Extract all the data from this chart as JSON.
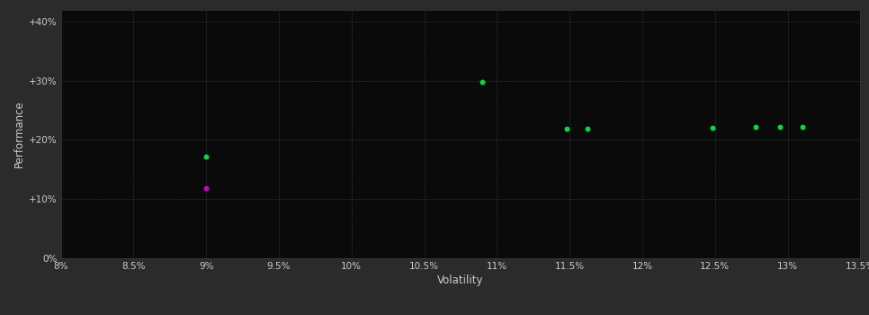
{
  "background_color": "#2b2b2b",
  "plot_bg_color": "#0a0a0a",
  "grid_color": "#3a3a3a",
  "text_color": "#cccccc",
  "xlabel": "Volatility",
  "ylabel": "Performance",
  "xlim": [
    0.08,
    0.135
  ],
  "ylim": [
    0.0,
    0.42
  ],
  "xticks": [
    0.08,
    0.085,
    0.09,
    0.095,
    0.1,
    0.105,
    0.11,
    0.115,
    0.12,
    0.125,
    0.13,
    0.135
  ],
  "xtick_labels": [
    "8%",
    "8.5%",
    "9%",
    "9.5%",
    "10%",
    "10.5%",
    "11%",
    "11.5%",
    "12%",
    "12.5%",
    "13%",
    "13.5%"
  ],
  "yticks": [
    0.0,
    0.1,
    0.2,
    0.3,
    0.4
  ],
  "ytick_labels": [
    "0%",
    "+10%",
    "+20%",
    "+30%",
    "+40%"
  ],
  "green_points": [
    [
      0.09,
      0.172
    ],
    [
      0.109,
      0.298
    ],
    [
      0.1148,
      0.218
    ],
    [
      0.1162,
      0.218
    ],
    [
      0.1248,
      0.22
    ],
    [
      0.1278,
      0.222
    ],
    [
      0.1295,
      0.222
    ],
    [
      0.131,
      0.222
    ]
  ],
  "magenta_points": [
    [
      0.09,
      0.118
    ]
  ],
  "green_color": "#00dd44",
  "magenta_color": "#cc00cc",
  "point_size": 18,
  "grid_alpha": 1.0,
  "grid_linestyle": "--",
  "grid_linewidth": 0.4
}
